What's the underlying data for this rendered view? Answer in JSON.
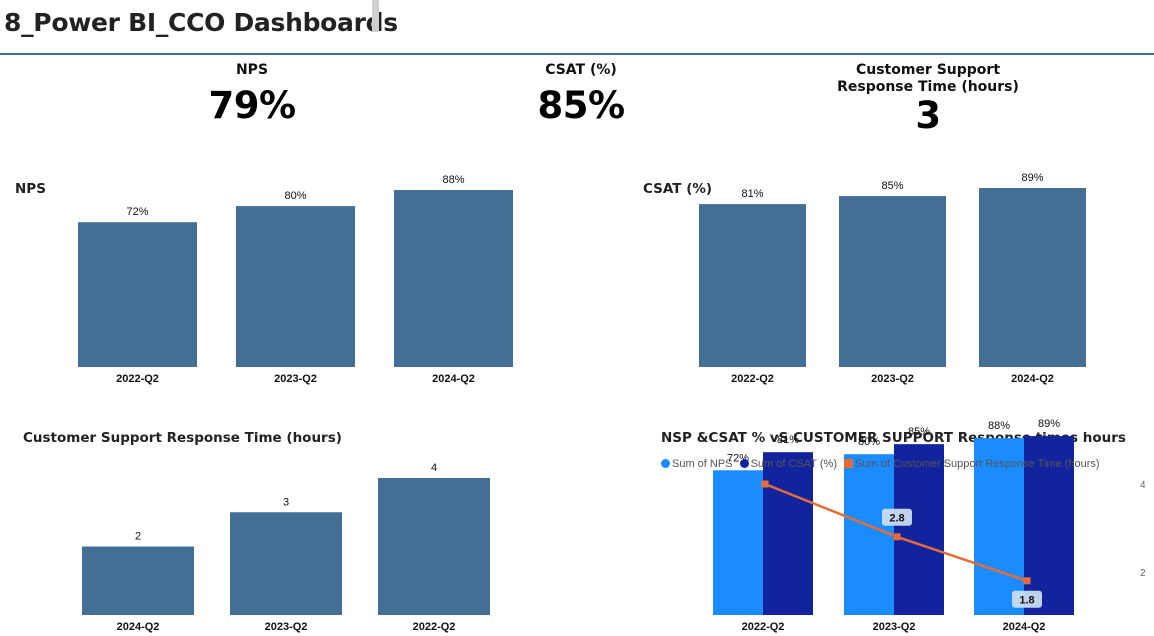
{
  "page": {
    "title": "8_Power BI_CCO Dashboards"
  },
  "kpis": [
    {
      "label": "NPS",
      "value": "79%"
    },
    {
      "label": "CSAT (%)",
      "value": "85%"
    },
    {
      "label": "Customer Support\nResponse Time (hours)",
      "value": "3"
    }
  ],
  "colors": {
    "bar": "#446f94",
    "nps": "#1a8cff",
    "csat": "#12239e",
    "response": "#e66c37"
  },
  "chart_data": [
    {
      "type": "bar",
      "title": "NPS",
      "categories": [
        "2022-Q2",
        "2023-Q2",
        "2024-Q2"
      ],
      "values": [
        72,
        80,
        88
      ],
      "labels": [
        "72%",
        "80%",
        "88%"
      ],
      "ylim": [
        0,
        90
      ]
    },
    {
      "type": "bar",
      "title": "CSAT (%)",
      "categories": [
        "2022-Q2",
        "2023-Q2",
        "2024-Q2"
      ],
      "values": [
        81,
        85,
        89
      ],
      "labels": [
        "81%",
        "85%",
        "89%"
      ],
      "ylim": [
        0,
        90
      ]
    },
    {
      "type": "bar",
      "title": "Customer Support Response Time (hours)",
      "categories": [
        "2024-Q2",
        "2023-Q2",
        "2022-Q2"
      ],
      "values": [
        2,
        3,
        4
      ],
      "labels": [
        "2",
        "3",
        "4"
      ],
      "ylim": [
        0,
        4
      ]
    },
    {
      "type": "bar",
      "title": "NSP &CSAT % vS CUSTOMER SUPPORT Response times hours",
      "categories": [
        "2022-Q2",
        "2023-Q2",
        "2024-Q2"
      ],
      "series": [
        {
          "name": "Sum of NPS",
          "type": "bar",
          "values": [
            72,
            80,
            88
          ],
          "labels": [
            "72%",
            "80%",
            "88%"
          ]
        },
        {
          "name": "Sum of CSAT (%)",
          "type": "bar",
          "values": [
            81,
            85,
            89
          ],
          "labels": [
            "81%",
            "85%",
            "89%"
          ]
        },
        {
          "name": "Sum of Customer Support Response Time (hours)",
          "type": "line",
          "values": [
            4,
            2.8,
            1.8
          ],
          "labels": [
            "",
            "2.8",
            "1.8"
          ]
        }
      ],
      "secondary_axis_ticks": [
        "4",
        "2"
      ],
      "legend": "top-left"
    }
  ]
}
